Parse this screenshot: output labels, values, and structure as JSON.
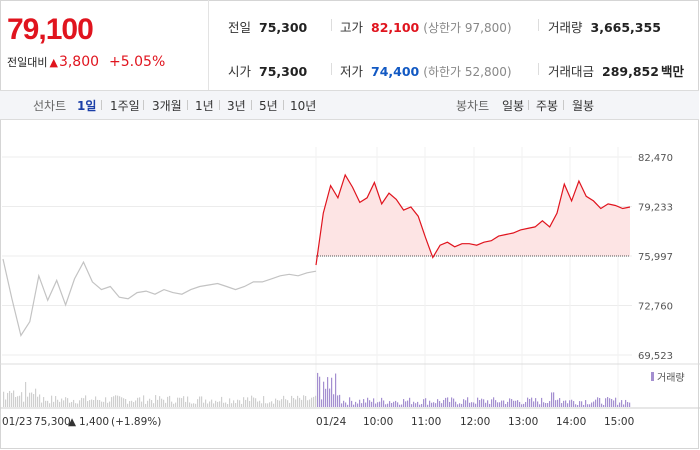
{
  "price": {
    "current": "79,100",
    "change_label": "전일대비",
    "change_icon": "up-triangle-icon",
    "change_value": "3,800",
    "change_rate": "+5.05%",
    "color_up": "#e0141e",
    "color_down": "#1259c3"
  },
  "stats": {
    "prev_close": {
      "label": "전일",
      "value": "75,300"
    },
    "open": {
      "label": "시가",
      "value": "75,300"
    },
    "high": {
      "label": "고가",
      "value": "82,100",
      "sub": "(상한가 97,800)"
    },
    "low": {
      "label": "저가",
      "value": "74,400",
      "sub": "(하한가 52,800)"
    },
    "volume": {
      "label": "거래량",
      "value": "3,665,355"
    },
    "amount": {
      "label": "거래대금",
      "value": "289,852",
      "unit": "백만"
    }
  },
  "line_tabs": {
    "label": "선차트",
    "items": [
      "1일",
      "1주일",
      "3개월",
      "1년",
      "3년",
      "5년",
      "10년"
    ],
    "active": "1일"
  },
  "candle_tabs": {
    "label": "봉차트",
    "items": [
      "일봉",
      "주봉",
      "월봉"
    ]
  },
  "chart_data": {
    "type": "line",
    "y_ticks": [
      "82,470",
      "79,233",
      "75,997",
      "72,760",
      "69,523"
    ],
    "ylim": [
      69523,
      82470
    ],
    "reference_price": 75997,
    "volume_legend": "거래량",
    "prev_day": {
      "date": "01/23",
      "close": "75,300",
      "change": "1,400",
      "rate": "(+1.89%)",
      "prices": [
        75800,
        73200,
        70800,
        71700,
        74700,
        73100,
        74400,
        72800,
        74500,
        75600,
        74300,
        73800,
        74000,
        73300,
        73200,
        73600,
        73700,
        73500,
        73800,
        73600,
        73500,
        73800,
        74000,
        74100,
        74200,
        74000,
        73800,
        74000,
        74300,
        74300,
        74500,
        74700,
        74800,
        74700,
        74900,
        75000
      ]
    },
    "today": {
      "date": "01/24",
      "time_ticks": [
        "10:00",
        "11:00",
        "12:00",
        "13:00",
        "14:00",
        "15:00"
      ],
      "prices": [
        75400,
        78800,
        80600,
        79800,
        81300,
        80500,
        79500,
        79800,
        80800,
        79400,
        80100,
        79700,
        79000,
        79200,
        78600,
        77200,
        75900,
        76700,
        76900,
        76600,
        76800,
        76800,
        76700,
        76900,
        77000,
        77300,
        77400,
        77500,
        77700,
        77800,
        77900,
        78300,
        77900,
        78800,
        80700,
        79600,
        80900,
        79900,
        79600,
        79100,
        79400,
        79300,
        79100,
        79200
      ]
    },
    "colors": {
      "today_line": "#e0141e",
      "today_fill": "#fde4e4",
      "prev_line": "#c3c3c3",
      "volume_today": "#a48fd0",
      "volume_prev": "#cfcfcf"
    }
  }
}
